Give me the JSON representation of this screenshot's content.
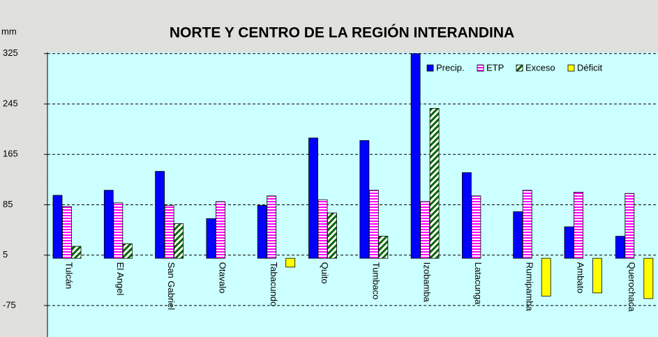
{
  "chart_data": {
    "type": "bar",
    "title": "NORTE Y CENTRO DE LA REGIÓN INTERANDINA",
    "y_label": "mm",
    "categories": [
      "Tulcán",
      "El Angel",
      "San Gabriel",
      "Otavalo",
      "Tabacundo",
      "Quito",
      "Tumbaco",
      "Izobamba",
      "Latacunga",
      "Rumipamba",
      "Ambato",
      "Querochaca"
    ],
    "series": [
      {
        "name": "Precip.",
        "color": "#0000ff",
        "values": [
          100,
          108,
          138,
          63,
          84,
          191,
          187,
          325,
          136,
          74,
          50,
          35
        ]
      },
      {
        "name": "ETP",
        "color": "#ff00ff",
        "values": [
          82,
          88,
          84,
          90,
          99,
          93,
          108,
          90,
          99,
          108,
          105,
          103
        ]
      },
      {
        "name": "Exceso",
        "color": "#006600",
        "values": [
          19,
          23,
          55,
          null,
          null,
          72,
          35,
          238,
          null,
          null,
          null,
          null
        ]
      },
      {
        "name": "Déficit",
        "color": "#ffff00",
        "values": [
          null,
          null,
          null,
          null,
          -14,
          null,
          null,
          null,
          null,
          -60,
          -55,
          -64
        ]
      }
    ],
    "ylim": [
      -125,
      327
    ],
    "yticks": [
      -75,
      5,
      85,
      165,
      245,
      325
    ],
    "grid": true,
    "legend": "top-right"
  }
}
